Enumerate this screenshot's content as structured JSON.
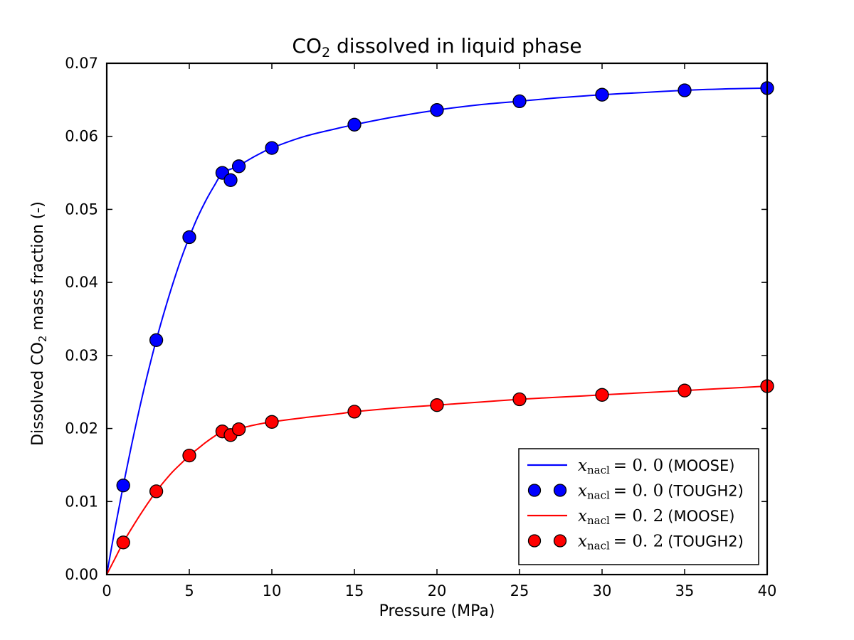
{
  "title": {
    "prefix": "CO",
    "sub": "2",
    "suffix": " dissolved in liquid phase"
  },
  "axes": {
    "xlabel": "Pressure (MPa)",
    "ylabel_prefix": "Dissolved CO",
    "ylabel_sub": "2",
    "ylabel_suffix": " mass fraction (-)"
  },
  "chart_data": {
    "type": "line",
    "title": "CO2 dissolved in liquid phase",
    "xlabel": "Pressure (MPa)",
    "ylabel": "Dissolved CO2 mass fraction (-)",
    "xlim": [
      0,
      40
    ],
    "ylim": [
      0,
      0.07
    ],
    "xticks": [
      "0",
      "5",
      "10",
      "15",
      "20",
      "25",
      "30",
      "35",
      "40"
    ],
    "yticks": [
      "0.00",
      "0.01",
      "0.02",
      "0.03",
      "0.04",
      "0.05",
      "0.06",
      "0.07"
    ],
    "grid": false,
    "legend_position": "lower right",
    "series": [
      {
        "name": "xnacl = 0.0 (MOOSE)",
        "style": "line",
        "color": "#0000ff",
        "x": [
          0,
          0.5,
          1,
          1.5,
          2,
          2.5,
          3,
          3.5,
          4,
          4.5,
          5,
          5.5,
          6,
          6.5,
          7,
          7.5,
          8,
          9,
          10,
          12,
          14,
          15,
          17.5,
          20,
          22.5,
          25,
          27.5,
          30,
          32.5,
          35,
          37.5,
          40
        ],
        "y": [
          0,
          0.0063,
          0.0122,
          0.0177,
          0.0229,
          0.0277,
          0.0321,
          0.0361,
          0.0398,
          0.0432,
          0.0462,
          0.0489,
          0.0512,
          0.0532,
          0.055,
          0.0555,
          0.056,
          0.0573,
          0.0584,
          0.06,
          0.0611,
          0.0616,
          0.0627,
          0.0636,
          0.0643,
          0.0648,
          0.0653,
          0.0657,
          0.066,
          0.0663,
          0.0665,
          0.0666
        ]
      },
      {
        "name": "xnacl = 0.0 (TOUGH2)",
        "style": "scatter",
        "color": "#0000ff",
        "x": [
          1,
          3,
          5,
          7,
          7.5,
          8,
          10,
          15,
          20,
          25,
          30,
          35,
          40
        ],
        "y": [
          0.0122,
          0.0321,
          0.0462,
          0.055,
          0.054,
          0.0559,
          0.0584,
          0.0616,
          0.0636,
          0.0648,
          0.0657,
          0.0663,
          0.0666
        ]
      },
      {
        "name": "xnacl = 0.2 (MOOSE)",
        "style": "line",
        "color": "#ff0000",
        "x": [
          0,
          0.5,
          1,
          1.5,
          2,
          2.5,
          3,
          3.5,
          4,
          4.5,
          5,
          5.5,
          6,
          6.5,
          7,
          7.5,
          8,
          9,
          10,
          12,
          14,
          15,
          17.5,
          20,
          22.5,
          25,
          27.5,
          30,
          32.5,
          35,
          37.5,
          40
        ],
        "y": [
          0,
          0.0022,
          0.0044,
          0.0063,
          0.0081,
          0.0098,
          0.0114,
          0.0128,
          0.0141,
          0.0152,
          0.0163,
          0.0172,
          0.0181,
          0.0189,
          0.0196,
          0.0198,
          0.02,
          0.0205,
          0.0209,
          0.0215,
          0.022,
          0.0223,
          0.0228,
          0.0232,
          0.0236,
          0.024,
          0.0243,
          0.0246,
          0.0249,
          0.0252,
          0.0255,
          0.0258
        ]
      },
      {
        "name": "xnacl = 0.2 (TOUGH2)",
        "style": "scatter",
        "color": "#ff0000",
        "x": [
          1,
          3,
          5,
          7,
          7.5,
          8,
          10,
          15,
          20,
          25,
          30,
          35,
          40
        ],
        "y": [
          0.0044,
          0.0114,
          0.0163,
          0.0196,
          0.0191,
          0.0199,
          0.0209,
          0.0223,
          0.0232,
          0.024,
          0.0246,
          0.0252,
          0.0258
        ]
      }
    ]
  },
  "legend": {
    "entries": [
      {
        "var": "x",
        "sub": "nacl",
        "value": "= 0. 0",
        "suffix": "(MOOSE)",
        "marker": "line",
        "color": "#0000ff"
      },
      {
        "var": "x",
        "sub": "nacl",
        "value": "= 0. 0",
        "suffix": "(TOUGH2)",
        "marker": "dots",
        "color": "#0000ff"
      },
      {
        "var": "x",
        "sub": "nacl",
        "value": "= 0. 2",
        "suffix": "(MOOSE)",
        "marker": "line",
        "color": "#ff0000"
      },
      {
        "var": "x",
        "sub": "nacl",
        "value": "= 0. 2",
        "suffix": "(TOUGH2)",
        "marker": "dots",
        "color": "#ff0000"
      }
    ]
  },
  "colors": {
    "axis": "#000000",
    "background": "#ffffff",
    "blue": "#0000ff",
    "red": "#ff0000"
  }
}
